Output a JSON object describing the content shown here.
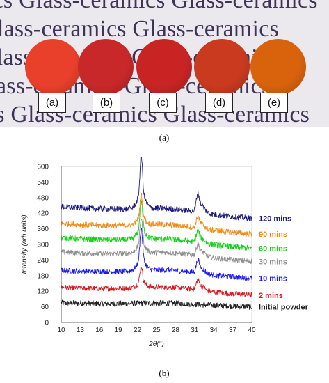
{
  "figure": {
    "panel_a": {
      "caption": "(a)",
      "background_text": [
        "ics  Glass-ceramics  Glass-ceramics",
        "lass-ceramics  Glass-ceramics",
        "Glass-ceramics  Glass-ceramics",
        "ass-ceramics  Glass-ceramics",
        "cs  Glass-ceramics  Glass-ceramics"
      ],
      "samples": [
        {
          "label": "(a)",
          "color": "#e8402a"
        },
        {
          "label": "(b)",
          "color": "#c8282a"
        },
        {
          "label": "(c)",
          "color": "#c92424"
        },
        {
          "label": "(d)",
          "color": "#c93a1f"
        },
        {
          "label": "(e)",
          "color": "#d9620c"
        }
      ]
    },
    "panel_b": {
      "caption": "(b)"
    }
  },
  "chart_data": {
    "type": "line",
    "xlabel": "2θ(°)",
    "ylabel": "Intensity (arb.units)",
    "xlim": [
      10,
      40
    ],
    "ylim": [
      0,
      600
    ],
    "x_ticks": [
      10,
      13,
      16,
      19,
      22,
      25,
      28,
      31,
      34,
      37,
      40
    ],
    "y_ticks": [
      0,
      60,
      120,
      180,
      240,
      300,
      360,
      420,
      480,
      540,
      600
    ],
    "peaks_2theta": [
      22.6,
      31.5
    ],
    "series": [
      {
        "name": "Initial powder",
        "color": "#222222",
        "baseline": 75,
        "slope": -15,
        "noise": 22,
        "peaks": [
          0,
          0
        ]
      },
      {
        "name": "2 mins",
        "color": "#d8181c",
        "baseline": 135,
        "slope": -30,
        "noise": 20,
        "peaks": [
          60,
          35
        ]
      },
      {
        "name": "10 mins",
        "color": "#1a1aee",
        "baseline": 200,
        "slope": -30,
        "noise": 20,
        "peaks": [
          120,
          45
        ]
      },
      {
        "name": "30 mins",
        "color": "#909090",
        "baseline": 270,
        "slope": -35,
        "noise": 20,
        "peaks": [
          100,
          40
        ]
      },
      {
        "name": "60 mins",
        "color": "#18d018",
        "baseline": 325,
        "slope": -40,
        "noise": 22,
        "peaks": [
          110,
          40
        ]
      },
      {
        "name": "90 mins",
        "color": "#f08a18",
        "baseline": 380,
        "slope": -40,
        "noise": 22,
        "peaks": [
          85,
          40
        ]
      },
      {
        "name": "120 mins",
        "color": "#1c1a7a",
        "baseline": 445,
        "slope": -45,
        "noise": 22,
        "peaks": [
          150,
          65
        ]
      }
    ]
  }
}
